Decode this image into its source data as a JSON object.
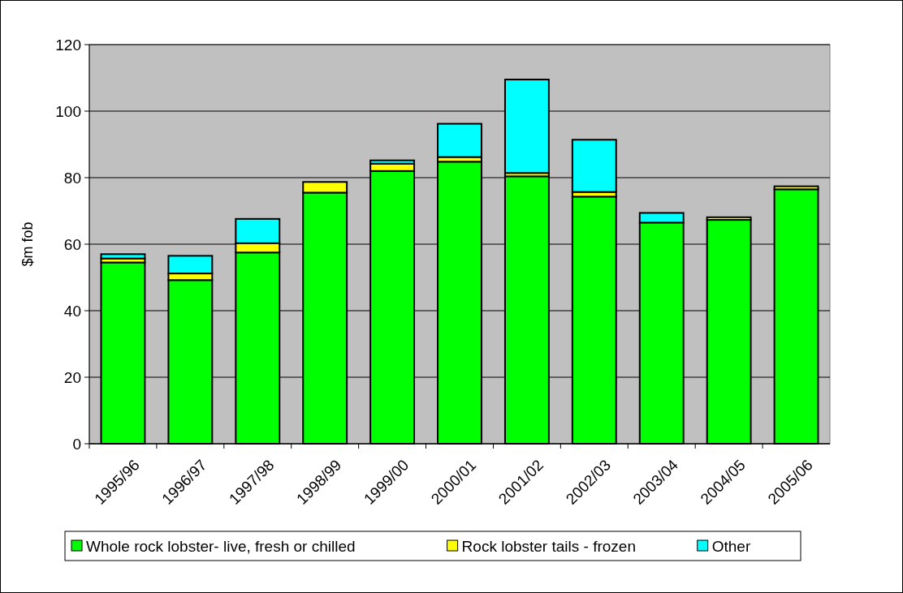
{
  "chart_data": {
    "type": "bar",
    "stacked": true,
    "ylabel": "$m fob",
    "categories": [
      "1995/96",
      "1996/97",
      "1997/98",
      "1998/99",
      "1999/00",
      "2000/01",
      "2001/02",
      "2002/03",
      "2003/04",
      "2004/05",
      "2005/06"
    ],
    "series": [
      {
        "name": "Whole rock lobster- live, fresh or chilled",
        "color": "#00ff00",
        "values": [
          54.5,
          49.2,
          57.5,
          75.5,
          82,
          84.8,
          80.4,
          74.3,
          66.5,
          67.3,
          76.5
        ]
      },
      {
        "name": "Rock lobster tails - frozen",
        "color": "#ffff00",
        "values": [
          1.2,
          2,
          2.8,
          3.2,
          2.2,
          1.4,
          1,
          1.4,
          0,
          0.8,
          0.9
        ]
      },
      {
        "name": "Other",
        "color": "#00ffff",
        "values": [
          1.3,
          5.3,
          7.3,
          0,
          1,
          10,
          28.1,
          15.7,
          2.9,
          0,
          0
        ]
      }
    ],
    "ylim": [
      0,
      120
    ],
    "yticks": [
      0,
      20,
      40,
      60,
      80,
      100,
      120
    ],
    "grid": "y",
    "legend": "bottom"
  }
}
